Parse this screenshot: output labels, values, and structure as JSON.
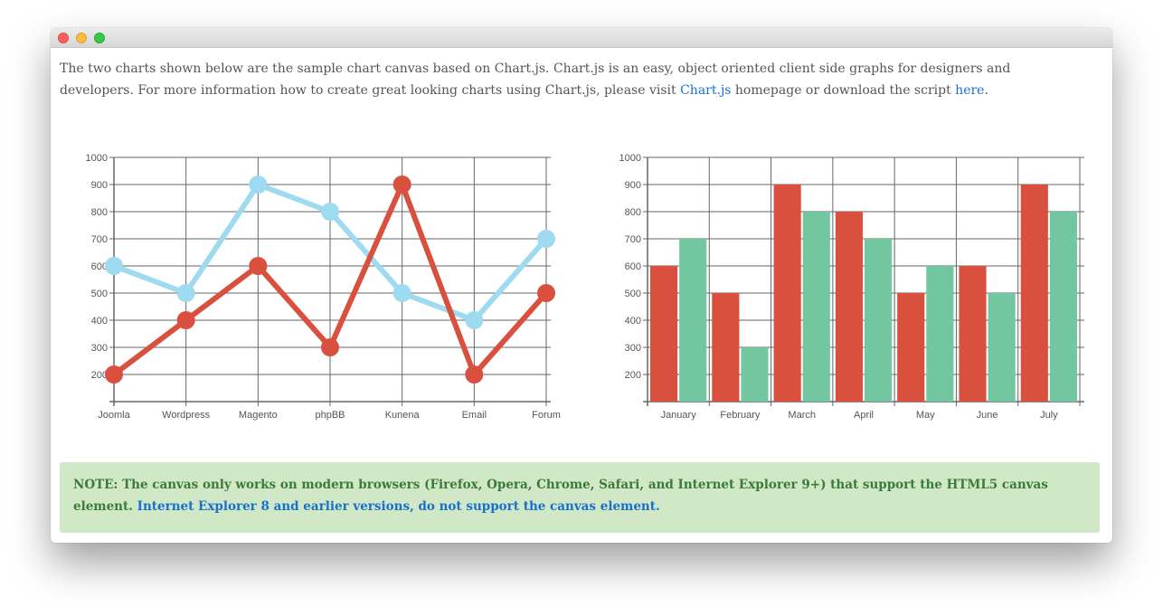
{
  "window": {
    "controls": [
      "close",
      "minimize",
      "maximize"
    ]
  },
  "intro": {
    "text_before": "The two charts shown below are the sample chart canvas based on Chart.js. Chart.js is an easy, object oriented client side graphs for designers and developers. For more information how to create great looking charts using Chart.js, please visit ",
    "link1": "Chart.js",
    "text_middle": " homepage or download the script ",
    "link2": "here",
    "text_after": "."
  },
  "note": {
    "text": "NOTE: The canvas only works on modern browsers (Firefox, Opera, Chrome, Safari, and Internet Explorer 9+) that support the HTML5 canvas element. ",
    "link": "Internet Explorer 8 and earlier versions, do not support the canvas element."
  },
  "colors": {
    "red": "#d9503f",
    "blue": "#9fdbf0",
    "green": "#72c6a0",
    "grid": "#666666"
  },
  "chart_data": [
    {
      "type": "line",
      "title": "",
      "categories": [
        "Joomla",
        "Wordpress",
        "Magento",
        "phpBB",
        "Kunena",
        "Email",
        "Forum"
      ],
      "series": [
        {
          "color": "#9fdbf0",
          "values": [
            600,
            500,
            900,
            800,
            500,
            400,
            700
          ]
        },
        {
          "color": "#d9503f",
          "values": [
            200,
            400,
            600,
            300,
            900,
            200,
            500
          ]
        }
      ],
      "y_ticks": [
        200,
        300,
        400,
        500,
        600,
        700,
        800,
        900,
        1000
      ],
      "ylim": [
        100,
        1000
      ],
      "grid": true
    },
    {
      "type": "bar",
      "title": "",
      "categories": [
        "January",
        "February",
        "March",
        "April",
        "May",
        "June",
        "July"
      ],
      "series": [
        {
          "color": "#d9503f",
          "values": [
            600,
            500,
            900,
            800,
            500,
            600,
            900
          ]
        },
        {
          "color": "#72c6a0",
          "values": [
            700,
            300,
            800,
            700,
            600,
            500,
            800
          ]
        }
      ],
      "y_ticks": [
        200,
        300,
        400,
        500,
        600,
        700,
        800,
        900,
        1000
      ],
      "ylim": [
        100,
        1000
      ],
      "grid": true
    }
  ]
}
